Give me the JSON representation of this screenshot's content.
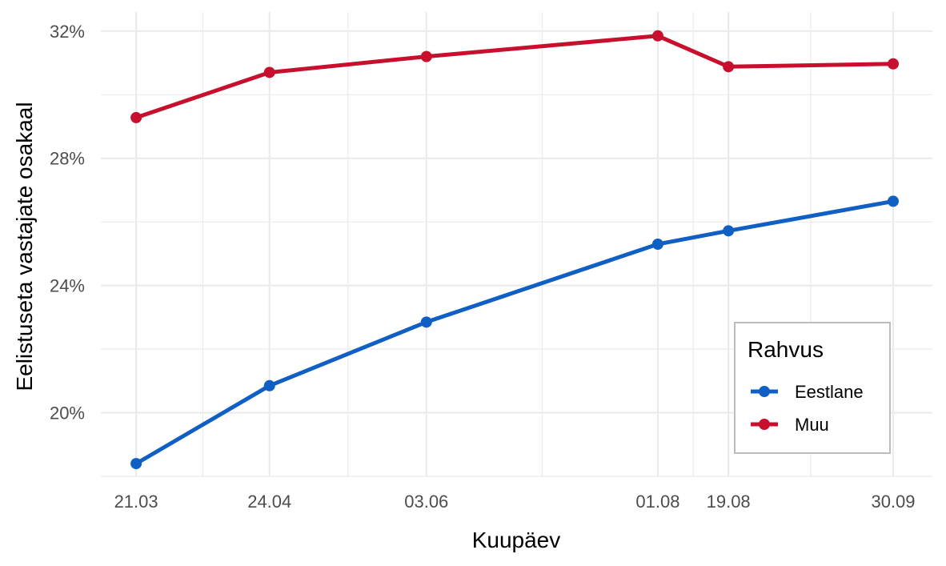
{
  "chart_data": {
    "type": "line",
    "title": "",
    "xlabel": "Kuupäev",
    "ylabel": "Eelistuseta vastajate osakaal",
    "x": [
      "21.03",
      "24.04",
      "03.06",
      "01.08",
      "19.08",
      "30.09"
    ],
    "x_day_of_year": [
      80,
      114,
      154,
      213,
      231,
      273
    ],
    "xlim_day_of_year": [
      71,
      283
    ],
    "ylim": [
      18.0,
      32.6
    ],
    "y_ticks": [
      20,
      24,
      28,
      32
    ],
    "y_tick_labels": [
      "20%",
      "24%",
      "28%",
      "32%"
    ],
    "grid": true,
    "legend": {
      "title": "Rahvus",
      "position": "bottom-right"
    },
    "series": [
      {
        "name": "Eestlane",
        "color": "#0f5fc4",
        "values": [
          18.4,
          20.85,
          22.85,
          25.3,
          25.72,
          26.65
        ]
      },
      {
        "name": "Muu",
        "color": "#c8102e",
        "values": [
          29.28,
          30.7,
          31.2,
          31.85,
          30.88,
          30.97
        ]
      }
    ]
  }
}
